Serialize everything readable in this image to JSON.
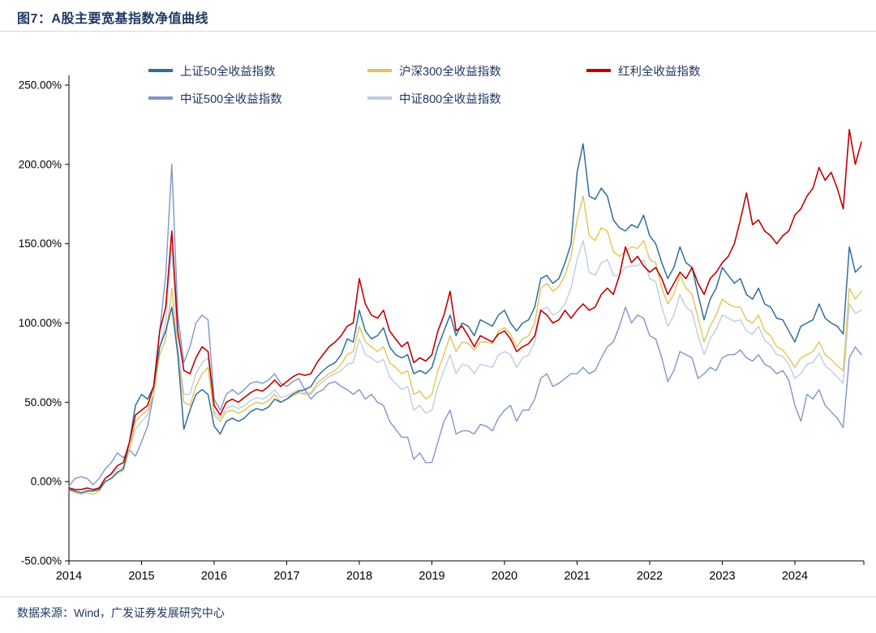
{
  "page": {
    "title": "图7：A股主要宽基指数净值曲线",
    "source": "数据来源：Wind，广发证券发展研究中心"
  },
  "colors": {
    "title_navy": "#1F3864",
    "axis": "#000000",
    "divider": "#D9D9D9"
  },
  "chart_data": {
    "type": "line",
    "title": "A股主要宽基指数净值曲线",
    "x_unit": "month",
    "x_start": "2014-01",
    "x_end": "2024-12",
    "x_points": 132,
    "x_tick_labels": [
      "2014",
      "2015",
      "2016",
      "2017",
      "2018",
      "2019",
      "2020",
      "2021",
      "2022",
      "2023",
      "2024"
    ],
    "y_ticks": [
      250,
      200,
      150,
      100,
      50,
      0,
      -50
    ],
    "y_tick_labels": [
      "250.00%",
      "200.00%",
      "150.00%",
      "100.00%",
      "50.00%",
      "0.00%",
      "-50.00%"
    ],
    "ylim": [
      -50,
      250
    ],
    "grid": false,
    "legend_position": "top",
    "series": [
      {
        "name": "上证50全收益指数",
        "color": "#2F6F9B",
        "values": [
          -5,
          -6,
          -7,
          -6,
          -6,
          -5,
          0,
          2,
          6,
          8,
          25,
          48,
          55,
          52,
          60,
          85,
          95,
          110,
          80,
          33,
          45,
          55,
          58,
          55,
          35,
          30,
          38,
          40,
          38,
          40,
          44,
          46,
          45,
          47,
          52,
          50,
          52,
          55,
          57,
          58,
          60,
          66,
          70,
          73,
          75,
          80,
          90,
          88,
          108,
          95,
          90,
          92,
          97,
          85,
          80,
          78,
          80,
          68,
          70,
          68,
          72,
          85,
          95,
          105,
          92,
          100,
          98,
          92,
          102,
          100,
          98,
          105,
          108,
          100,
          95,
          100,
          102,
          110,
          128,
          130,
          125,
          128,
          138,
          150,
          195,
          213,
          180,
          178,
          185,
          180,
          165,
          160,
          158,
          162,
          160,
          168,
          155,
          150,
          138,
          128,
          135,
          148,
          138,
          135,
          118,
          102,
          115,
          122,
          135,
          130,
          125,
          128,
          118,
          115,
          122,
          112,
          110,
          103,
          102,
          95,
          88,
          98,
          100,
          102,
          112,
          103,
          100,
          98,
          93,
          148,
          132,
          136
        ]
      },
      {
        "name": "沪深300全收益指数",
        "color": "#E3C356",
        "values": [
          -5,
          -7,
          -8,
          -7,
          -8,
          -6,
          0,
          2,
          5,
          7,
          20,
          38,
          42,
          45,
          55,
          80,
          90,
          122,
          80,
          50,
          48,
          60,
          68,
          72,
          42,
          38,
          44,
          45,
          43,
          45,
          48,
          50,
          49,
          51,
          55,
          50,
          52,
          54,
          56,
          55,
          56,
          62,
          65,
          68,
          70,
          74,
          80,
          82,
          98,
          88,
          85,
          82,
          85,
          75,
          72,
          68,
          70,
          55,
          57,
          52,
          55,
          70,
          80,
          92,
          82,
          88,
          87,
          83,
          88,
          88,
          87,
          95,
          97,
          93,
          85,
          90,
          92,
          100,
          122,
          125,
          120,
          123,
          130,
          142,
          165,
          180,
          155,
          152,
          160,
          158,
          145,
          142,
          145,
          148,
          147,
          152,
          140,
          138,
          122,
          112,
          118,
          130,
          122,
          118,
          103,
          88,
          98,
          105,
          115,
          112,
          110,
          110,
          102,
          100,
          105,
          95,
          92,
          85,
          83,
          78,
          72,
          78,
          80,
          82,
          88,
          80,
          77,
          73,
          70,
          122,
          115,
          120
        ]
      },
      {
        "name": "红利全收益指数",
        "color": "#C00000",
        "values": [
          -4,
          -5,
          -5,
          -4,
          -5,
          -4,
          2,
          5,
          10,
          12,
          25,
          42,
          45,
          48,
          60,
          95,
          110,
          158,
          95,
          70,
          68,
          78,
          85,
          82,
          48,
          42,
          50,
          52,
          50,
          53,
          56,
          58,
          57,
          60,
          64,
          60,
          63,
          66,
          68,
          67,
          68,
          75,
          80,
          85,
          88,
          92,
          98,
          100,
          128,
          112,
          105,
          103,
          108,
          95,
          90,
          85,
          88,
          75,
          78,
          76,
          80,
          95,
          105,
          120,
          95,
          98,
          92,
          85,
          92,
          90,
          88,
          93,
          95,
          90,
          82,
          85,
          87,
          92,
          108,
          105,
          100,
          102,
          108,
          103,
          108,
          112,
          108,
          110,
          118,
          122,
          118,
          130,
          148,
          138,
          142,
          136,
          132,
          135,
          128,
          118,
          125,
          132,
          128,
          135,
          125,
          118,
          128,
          132,
          138,
          142,
          150,
          165,
          182,
          162,
          165,
          158,
          155,
          150,
          155,
          158,
          168,
          172,
          180,
          185,
          198,
          190,
          195,
          185,
          172,
          222,
          200,
          214
        ]
      },
      {
        "name": "中证500全收益指数",
        "color": "#7E96C8",
        "values": [
          -3,
          2,
          3,
          2,
          -2,
          2,
          8,
          12,
          18,
          15,
          20,
          16,
          25,
          35,
          55,
          95,
          130,
          200,
          105,
          75,
          85,
          100,
          105,
          102,
          52,
          45,
          55,
          58,
          55,
          58,
          62,
          63,
          62,
          64,
          68,
          62,
          60,
          63,
          65,
          58,
          52,
          56,
          58,
          62,
          63,
          60,
          58,
          55,
          58,
          52,
          55,
          50,
          48,
          38,
          33,
          28,
          28,
          14,
          18,
          12,
          12,
          25,
          38,
          45,
          30,
          32,
          32,
          30,
          36,
          35,
          32,
          40,
          45,
          48,
          38,
          45,
          45,
          52,
          65,
          68,
          60,
          62,
          65,
          68,
          68,
          72,
          68,
          70,
          78,
          85,
          88,
          98,
          110,
          100,
          105,
          103,
          92,
          90,
          78,
          63,
          70,
          82,
          80,
          78,
          65,
          68,
          72,
          70,
          78,
          80,
          80,
          83,
          78,
          76,
          80,
          74,
          72,
          68,
          70,
          64,
          48,
          38,
          55,
          52,
          58,
          48,
          44,
          40,
          34,
          78,
          85,
          80
        ]
      },
      {
        "name": "中证800全收益指数",
        "color": "#BCCDE4",
        "values": [
          -4,
          -5,
          -5,
          -5,
          -6,
          -4,
          2,
          4,
          8,
          9,
          20,
          33,
          38,
          42,
          55,
          85,
          100,
          148,
          85,
          55,
          55,
          68,
          75,
          78,
          44,
          40,
          46,
          48,
          46,
          48,
          51,
          53,
          52,
          54,
          58,
          53,
          54,
          56,
          58,
          56,
          55,
          60,
          63,
          66,
          68,
          70,
          74,
          75,
          90,
          80,
          78,
          75,
          77,
          66,
          62,
          58,
          60,
          45,
          48,
          43,
          45,
          60,
          70,
          80,
          68,
          74,
          73,
          68,
          74,
          73,
          72,
          80,
          82,
          80,
          72,
          78,
          80,
          88,
          108,
          110,
          105,
          107,
          112,
          122,
          140,
          152,
          132,
          130,
          138,
          140,
          130,
          130,
          135,
          136,
          136,
          140,
          128,
          126,
          110,
          98,
          105,
          118,
          110,
          107,
          92,
          80,
          90,
          96,
          105,
          103,
          101,
          102,
          95,
          93,
          98,
          89,
          86,
          80,
          79,
          74,
          65,
          68,
          74,
          75,
          81,
          73,
          70,
          66,
          62,
          112,
          106,
          108
        ]
      }
    ]
  }
}
